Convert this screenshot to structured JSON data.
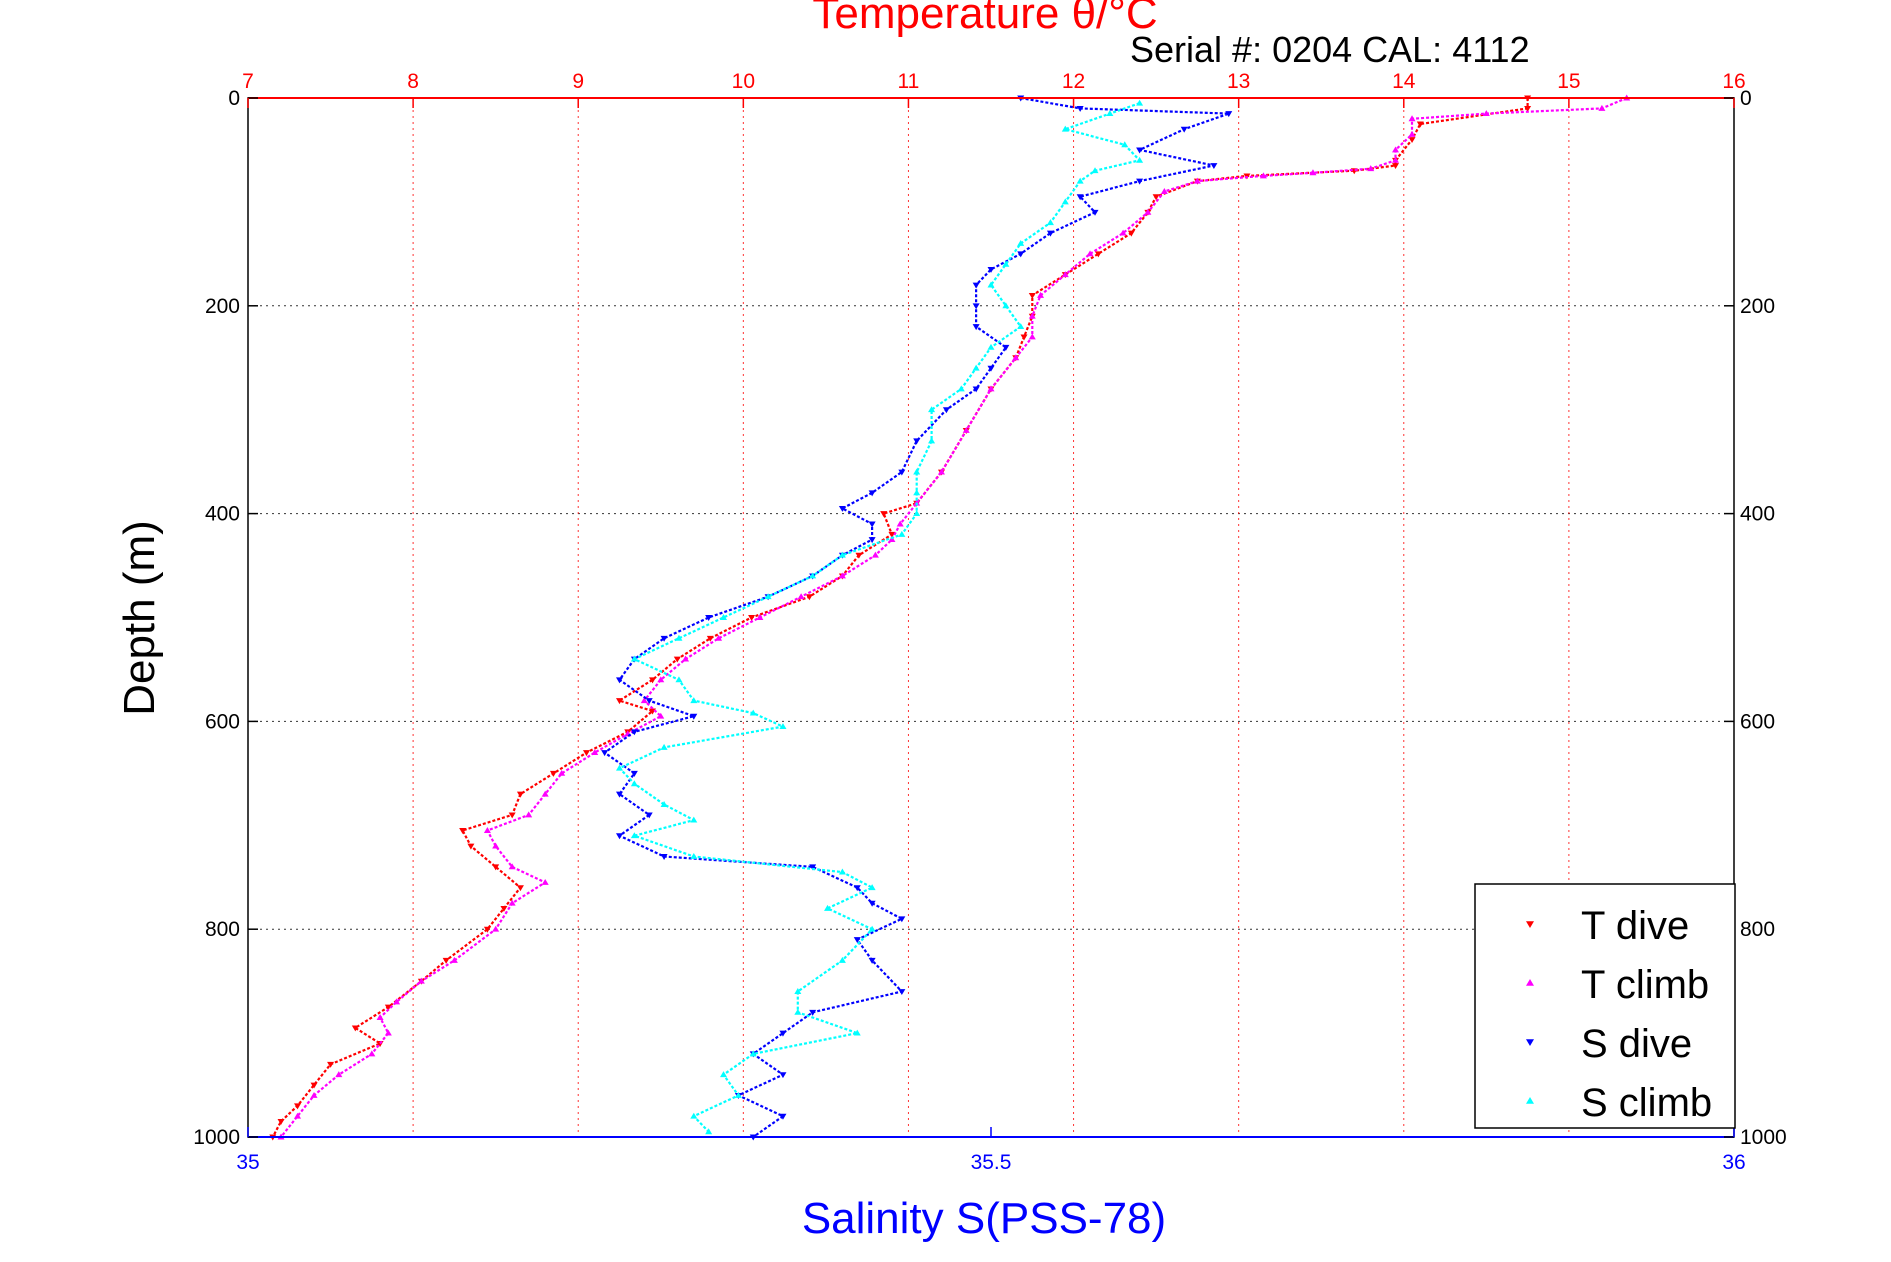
{
  "chart_data": {
    "type": "scatter",
    "title": "Temperature θ/°C",
    "annotation": "Serial #: 0204  CAL: 4112",
    "ylabel": "Depth (m)",
    "xlabel_bottom": "Salinity S(PSS-78)",
    "y_range": [
      0,
      1000
    ],
    "y_reversed": true,
    "y_ticks": [
      0,
      200,
      400,
      600,
      800,
      1000
    ],
    "top_axis": {
      "quantity": "temperature",
      "range": [
        7,
        16
      ],
      "ticks": [
        7,
        8,
        9,
        10,
        11,
        12,
        13,
        14,
        15,
        16
      ],
      "color": "#ff0000"
    },
    "bottom_axis": {
      "quantity": "salinity",
      "range": [
        35,
        36
      ],
      "ticks": [
        35,
        35.5,
        36
      ],
      "color": "#0000ff"
    },
    "grid": true,
    "legend_position": "bottom-right",
    "series": [
      {
        "name": "T dive",
        "axis": "temperature",
        "color": "#ff0000",
        "marker": "triangle-down",
        "points": [
          [
            14.75,
            0
          ],
          [
            14.75,
            10
          ],
          [
            14.1,
            25
          ],
          [
            14.05,
            40
          ],
          [
            13.95,
            60
          ],
          [
            13.95,
            65
          ],
          [
            13.7,
            70
          ],
          [
            13.05,
            75
          ],
          [
            12.75,
            80
          ],
          [
            12.5,
            95
          ],
          [
            12.45,
            110
          ],
          [
            12.35,
            130
          ],
          [
            12.15,
            150
          ],
          [
            11.95,
            170
          ],
          [
            11.75,
            190
          ],
          [
            11.75,
            210
          ],
          [
            11.7,
            230
          ],
          [
            11.65,
            250
          ],
          [
            11.5,
            280
          ],
          [
            11.35,
            320
          ],
          [
            11.2,
            360
          ],
          [
            11.05,
            390
          ],
          [
            10.85,
            400
          ],
          [
            10.9,
            420
          ],
          [
            10.7,
            440
          ],
          [
            10.6,
            460
          ],
          [
            10.4,
            480
          ],
          [
            10.05,
            500
          ],
          [
            9.8,
            520
          ],
          [
            9.6,
            540
          ],
          [
            9.45,
            560
          ],
          [
            9.25,
            580
          ],
          [
            9.45,
            590
          ],
          [
            9.3,
            610
          ],
          [
            9.05,
            630
          ],
          [
            8.85,
            650
          ],
          [
            8.65,
            670
          ],
          [
            8.6,
            690
          ],
          [
            8.3,
            705
          ],
          [
            8.35,
            720
          ],
          [
            8.5,
            740
          ],
          [
            8.65,
            760
          ],
          [
            8.55,
            780
          ],
          [
            8.45,
            800
          ],
          [
            8.2,
            830
          ],
          [
            8.05,
            850
          ],
          [
            7.85,
            875
          ],
          [
            7.65,
            895
          ],
          [
            7.8,
            910
          ],
          [
            7.5,
            930
          ],
          [
            7.4,
            950
          ],
          [
            7.3,
            970
          ],
          [
            7.2,
            985
          ],
          [
            7.15,
            1000
          ]
        ]
      },
      {
        "name": "T climb",
        "axis": "temperature",
        "color": "#ff00ff",
        "marker": "triangle-up",
        "points": [
          [
            15.35,
            0
          ],
          [
            15.2,
            10
          ],
          [
            14.5,
            15
          ],
          [
            14.05,
            20
          ],
          [
            14.05,
            35
          ],
          [
            13.95,
            50
          ],
          [
            13.95,
            60
          ],
          [
            13.8,
            68
          ],
          [
            13.45,
            72
          ],
          [
            13.15,
            75
          ],
          [
            12.75,
            80
          ],
          [
            12.55,
            90
          ],
          [
            12.45,
            110
          ],
          [
            12.3,
            130
          ],
          [
            12.1,
            150
          ],
          [
            11.95,
            170
          ],
          [
            11.8,
            190
          ],
          [
            11.75,
            210
          ],
          [
            11.75,
            230
          ],
          [
            11.65,
            250
          ],
          [
            11.5,
            280
          ],
          [
            11.35,
            320
          ],
          [
            11.2,
            360
          ],
          [
            11.05,
            390
          ],
          [
            10.95,
            410
          ],
          [
            10.9,
            425
          ],
          [
            10.8,
            440
          ],
          [
            10.6,
            460
          ],
          [
            10.35,
            480
          ],
          [
            10.1,
            500
          ],
          [
            9.85,
            520
          ],
          [
            9.65,
            540
          ],
          [
            9.5,
            560
          ],
          [
            9.4,
            580
          ],
          [
            9.5,
            595
          ],
          [
            9.3,
            612
          ],
          [
            9.1,
            630
          ],
          [
            8.9,
            650
          ],
          [
            8.8,
            670
          ],
          [
            8.7,
            690
          ],
          [
            8.45,
            705
          ],
          [
            8.5,
            720
          ],
          [
            8.6,
            740
          ],
          [
            8.8,
            755
          ],
          [
            8.6,
            775
          ],
          [
            8.5,
            800
          ],
          [
            8.25,
            830
          ],
          [
            8.05,
            850
          ],
          [
            7.9,
            870
          ],
          [
            7.8,
            885
          ],
          [
            7.85,
            900
          ],
          [
            7.75,
            920
          ],
          [
            7.55,
            940
          ],
          [
            7.4,
            960
          ],
          [
            7.3,
            980
          ],
          [
            7.2,
            1000
          ]
        ]
      },
      {
        "name": "S dive",
        "axis": "salinity",
        "color": "#0000ff",
        "marker": "triangle-down",
        "points": [
          [
            35.52,
            0
          ],
          [
            35.56,
            10
          ],
          [
            35.66,
            15
          ],
          [
            35.63,
            30
          ],
          [
            35.6,
            50
          ],
          [
            35.65,
            65
          ],
          [
            35.6,
            80
          ],
          [
            35.56,
            95
          ],
          [
            35.57,
            110
          ],
          [
            35.54,
            130
          ],
          [
            35.52,
            150
          ],
          [
            35.5,
            165
          ],
          [
            35.49,
            180
          ],
          [
            35.49,
            200
          ],
          [
            35.49,
            220
          ],
          [
            35.51,
            240
          ],
          [
            35.5,
            260
          ],
          [
            35.49,
            280
          ],
          [
            35.47,
            300
          ],
          [
            35.45,
            330
          ],
          [
            35.44,
            360
          ],
          [
            35.42,
            380
          ],
          [
            35.4,
            395
          ],
          [
            35.42,
            410
          ],
          [
            35.42,
            425
          ],
          [
            35.4,
            440
          ],
          [
            35.38,
            460
          ],
          [
            35.35,
            480
          ],
          [
            35.31,
            500
          ],
          [
            35.28,
            520
          ],
          [
            35.26,
            540
          ],
          [
            35.25,
            560
          ],
          [
            35.27,
            580
          ],
          [
            35.3,
            595
          ],
          [
            35.26,
            610
          ],
          [
            35.24,
            630
          ],
          [
            35.26,
            650
          ],
          [
            35.25,
            670
          ],
          [
            35.27,
            690
          ],
          [
            35.25,
            710
          ],
          [
            35.28,
            730
          ],
          [
            35.38,
            740
          ],
          [
            35.41,
            760
          ],
          [
            35.42,
            775
          ],
          [
            35.44,
            790
          ],
          [
            35.41,
            810
          ],
          [
            35.42,
            830
          ],
          [
            35.44,
            860
          ],
          [
            35.38,
            880
          ],
          [
            35.36,
            900
          ],
          [
            35.34,
            920
          ],
          [
            35.36,
            940
          ],
          [
            35.33,
            960
          ],
          [
            35.36,
            980
          ],
          [
            35.34,
            1000
          ]
        ]
      },
      {
        "name": "S climb",
        "axis": "salinity",
        "color": "#00ffff",
        "marker": "triangle-up",
        "points": [
          [
            35.6,
            5
          ],
          [
            35.58,
            15
          ],
          [
            35.55,
            30
          ],
          [
            35.59,
            45
          ],
          [
            35.6,
            60
          ],
          [
            35.57,
            70
          ],
          [
            35.56,
            80
          ],
          [
            35.55,
            100
          ],
          [
            35.54,
            120
          ],
          [
            35.52,
            140
          ],
          [
            35.51,
            160
          ],
          [
            35.5,
            180
          ],
          [
            35.51,
            200
          ],
          [
            35.52,
            220
          ],
          [
            35.5,
            240
          ],
          [
            35.49,
            260
          ],
          [
            35.48,
            280
          ],
          [
            35.46,
            300
          ],
          [
            35.46,
            330
          ],
          [
            35.45,
            360
          ],
          [
            35.45,
            380
          ],
          [
            35.45,
            400
          ],
          [
            35.44,
            420
          ],
          [
            35.4,
            440
          ],
          [
            35.38,
            460
          ],
          [
            35.35,
            480
          ],
          [
            35.32,
            500
          ],
          [
            35.29,
            520
          ],
          [
            35.26,
            540
          ],
          [
            35.29,
            560
          ],
          [
            35.3,
            580
          ],
          [
            35.34,
            592
          ],
          [
            35.36,
            605
          ],
          [
            35.28,
            625
          ],
          [
            35.25,
            645
          ],
          [
            35.26,
            660
          ],
          [
            35.28,
            680
          ],
          [
            35.3,
            695
          ],
          [
            35.26,
            710
          ],
          [
            35.3,
            730
          ],
          [
            35.4,
            745
          ],
          [
            35.42,
            760
          ],
          [
            35.39,
            780
          ],
          [
            35.42,
            800
          ],
          [
            35.4,
            830
          ],
          [
            35.37,
            860
          ],
          [
            35.37,
            880
          ],
          [
            35.41,
            900
          ],
          [
            35.34,
            920
          ],
          [
            35.32,
            940
          ],
          [
            35.33,
            960
          ],
          [
            35.3,
            980
          ],
          [
            35.31,
            995
          ]
        ]
      }
    ]
  }
}
